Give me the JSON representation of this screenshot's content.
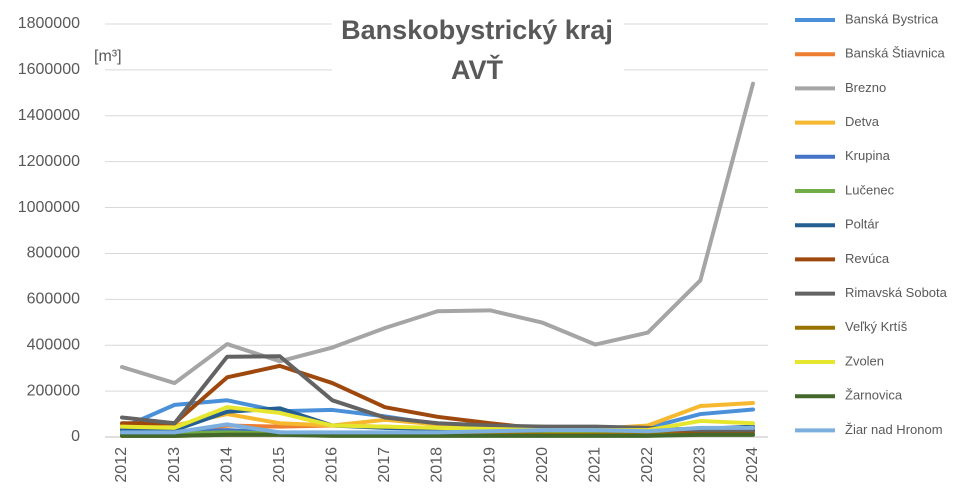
{
  "chart_data": {
    "type": "line",
    "title": "Banskobystrický kraj",
    "subtitle": "AVŤ",
    "y_label": "[m³]",
    "categories": [
      "2012",
      "2013",
      "2014",
      "2015",
      "2016",
      "2017",
      "2018",
      "2019",
      "2020",
      "2021",
      "2022",
      "2023",
      "2024"
    ],
    "ylim": [
      0,
      1800000
    ],
    "yticks": [
      0,
      200000,
      400000,
      600000,
      800000,
      1000000,
      1200000,
      1400000,
      1600000,
      1800000
    ],
    "grid": true,
    "legend": "right",
    "series": [
      {
        "name": "Banská Bystrica",
        "color": "#4a90d9",
        "values": [
          40000,
          140000,
          160000,
          112000,
          118000,
          90000,
          55000,
          40000,
          35000,
          35000,
          40000,
          100000,
          120000
        ]
      },
      {
        "name": "Banská Štiavnica",
        "color": "#ed7d31",
        "values": [
          10000,
          15000,
          50000,
          45000,
          50000,
          45000,
          35000,
          30000,
          25000,
          20000,
          20000,
          30000,
          30000
        ]
      },
      {
        "name": "Brezno",
        "color": "#a5a5a5",
        "values": [
          305000,
          235000,
          405000,
          330000,
          390000,
          475000,
          548000,
          552000,
          498000,
          403000,
          455000,
          683000,
          1540000
        ]
      },
      {
        "name": "Detva",
        "color": "#f5b82e",
        "values": [
          50000,
          50000,
          100000,
          60000,
          50000,
          75000,
          55000,
          45000,
          45000,
          35000,
          50000,
          135000,
          148000
        ]
      },
      {
        "name": "Krupina",
        "color": "#4472c4",
        "values": [
          20000,
          20000,
          30000,
          20000,
          15000,
          15000,
          15000,
          20000,
          20000,
          25000,
          20000,
          30000,
          30000
        ]
      },
      {
        "name": "Lučenec",
        "color": "#70ad47",
        "values": [
          15000,
          15000,
          20000,
          15000,
          15000,
          10000,
          10000,
          15000,
          15000,
          15000,
          15000,
          20000,
          20000
        ]
      },
      {
        "name": "Poltár",
        "color": "#255e91",
        "values": [
          30000,
          30000,
          110000,
          125000,
          50000,
          40000,
          35000,
          30000,
          30000,
          40000,
          30000,
          35000,
          45000
        ]
      },
      {
        "name": "Revúca",
        "color": "#9e480e",
        "values": [
          60000,
          60000,
          260000,
          310000,
          235000,
          130000,
          88000,
          60000,
          35000,
          30000,
          30000,
          25000,
          25000
        ]
      },
      {
        "name": "Rimavská Sobota",
        "color": "#636363",
        "values": [
          85000,
          60000,
          350000,
          352000,
          160000,
          85000,
          60000,
          50000,
          45000,
          45000,
          40000,
          30000,
          30000
        ]
      },
      {
        "name": "Veľký Krtíš",
        "color": "#997300",
        "values": [
          5000,
          5000,
          10000,
          10000,
          10000,
          10000,
          10000,
          10000,
          10000,
          10000,
          10000,
          10000,
          10000
        ]
      },
      {
        "name": "Zvolen",
        "color": "#e6e62e",
        "values": [
          45000,
          40000,
          130000,
          105000,
          50000,
          45000,
          40000,
          35000,
          30000,
          30000,
          30000,
          70000,
          60000
        ]
      },
      {
        "name": "Žarnovica",
        "color": "#43682b",
        "values": [
          5000,
          5000,
          10000,
          10000,
          5000,
          5000,
          5000,
          5000,
          5000,
          5000,
          5000,
          10000,
          10000
        ]
      },
      {
        "name": "Žiar nad Hronom",
        "color": "#7cafdd",
        "values": [
          20000,
          20000,
          55000,
          20000,
          20000,
          20000,
          20000,
          25000,
          30000,
          30000,
          25000,
          40000,
          40000
        ]
      }
    ]
  }
}
